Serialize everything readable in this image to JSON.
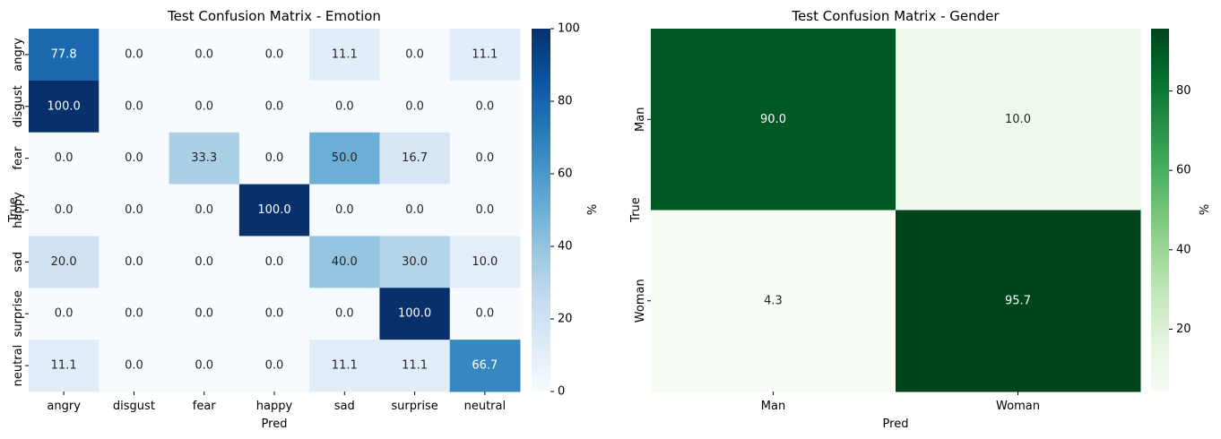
{
  "chart_data": [
    {
      "type": "heatmap",
      "title": "Test Confusion Matrix - Emotion",
      "xlabel": "Pred",
      "ylabel": "True",
      "x_categories": [
        "angry",
        "disgust",
        "fear",
        "happy",
        "sad",
        "surprise",
        "neutral"
      ],
      "y_categories": [
        "angry",
        "disgust",
        "fear",
        "happy",
        "sad",
        "surprise",
        "neutral"
      ],
      "values": [
        [
          77.8,
          0.0,
          0.0,
          0.0,
          11.1,
          0.0,
          11.1
        ],
        [
          100.0,
          0.0,
          0.0,
          0.0,
          0.0,
          0.0,
          0.0
        ],
        [
          0.0,
          0.0,
          33.3,
          0.0,
          50.0,
          16.7,
          0.0
        ],
        [
          0.0,
          0.0,
          0.0,
          100.0,
          0.0,
          0.0,
          0.0
        ],
        [
          20.0,
          0.0,
          0.0,
          0.0,
          40.0,
          30.0,
          10.0
        ],
        [
          0.0,
          0.0,
          0.0,
          0.0,
          0.0,
          100.0,
          0.0
        ],
        [
          11.1,
          0.0,
          0.0,
          0.0,
          11.1,
          11.1,
          66.7
        ]
      ],
      "colormap": "Blues",
      "colorbar": {
        "label": "%",
        "range": [
          0,
          100
        ],
        "ticks": [
          0,
          20,
          40,
          60,
          80,
          100
        ]
      }
    },
    {
      "type": "heatmap",
      "title": "Test Confusion Matrix - Gender",
      "xlabel": "Pred",
      "ylabel": "True",
      "x_categories": [
        "Man",
        "Woman"
      ],
      "y_categories": [
        "Man",
        "Woman"
      ],
      "values": [
        [
          90.0,
          10.0
        ],
        [
          4.3,
          95.7
        ]
      ],
      "colormap": "Greens",
      "colorbar": {
        "label": "%",
        "range": [
          4.3,
          95.7
        ],
        "ticks": [
          20,
          40,
          60,
          80
        ]
      }
    }
  ]
}
